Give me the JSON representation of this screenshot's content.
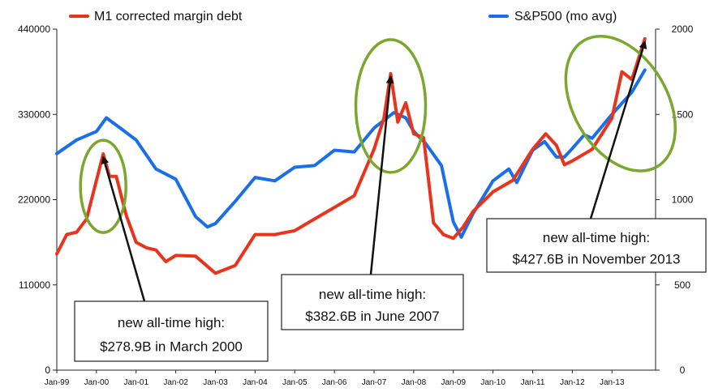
{
  "chart_data": {
    "type": "line",
    "title": "",
    "xlabel": "",
    "ylabel_left": "",
    "ylabel_right": "",
    "x_tick_labels": [
      "Jan-99",
      "Jan-00",
      "Jan-01",
      "Jan-02",
      "Jan-03",
      "Jan-04",
      "Jan-05",
      "Jan-06",
      "Jan-07",
      "Jan-08",
      "Jan-09",
      "Jan-10",
      "Jan-11",
      "Jan-12",
      "Jan-13"
    ],
    "x_range": [
      1999.0,
      2014.1
    ],
    "y_left": {
      "range": [
        0,
        440000
      ],
      "ticks": [
        "0",
        "110000",
        "220000",
        "330000",
        "440000"
      ]
    },
    "y_right": {
      "range": [
        0,
        2000
      ],
      "ticks": [
        "0",
        "500",
        "1000",
        "1500",
        "2000"
      ]
    },
    "legend": {
      "placement": "top"
    },
    "series": [
      {
        "name": "M1 corrected margin debt",
        "axis": "left",
        "color": "#e8341c",
        "x": [
          1999.0,
          1999.25,
          1999.5,
          1999.75,
          2000.0,
          2000.17,
          2000.33,
          2000.5,
          2000.75,
          2001.0,
          2001.25,
          2001.5,
          2001.75,
          2002.0,
          2002.5,
          2003.0,
          2003.5,
          2004.0,
          2004.5,
          2005.0,
          2005.5,
          2006.0,
          2006.5,
          2006.75,
          2007.0,
          2007.25,
          2007.42,
          2007.6,
          2007.8,
          2008.0,
          2008.25,
          2008.5,
          2008.75,
          2009.0,
          2009.25,
          2009.5,
          2010.0,
          2010.5,
          2011.0,
          2011.33,
          2011.6,
          2011.8,
          2012.0,
          2012.5,
          2013.0,
          2013.25,
          2013.5,
          2013.83
        ],
        "values": [
          150000,
          175000,
          178000,
          195000,
          245000,
          278900,
          250000,
          250000,
          200000,
          165000,
          158000,
          155000,
          140000,
          148000,
          147000,
          125000,
          135000,
          175000,
          175000,
          180000,
          195000,
          210000,
          225000,
          255000,
          285000,
          325000,
          382600,
          320000,
          345000,
          305000,
          300000,
          190000,
          175000,
          170000,
          185000,
          205000,
          230000,
          245000,
          285000,
          305000,
          290000,
          265000,
          270000,
          285000,
          325000,
          385000,
          375000,
          427600
        ]
      },
      {
        "name": "S&P500 (mo avg)",
        "axis": "right",
        "color": "#1a6fe8",
        "x": [
          1999.0,
          1999.5,
          2000.0,
          2000.25,
          2000.6,
          2001.0,
          2001.5,
          2002.0,
          2002.5,
          2002.8,
          2003.0,
          2003.5,
          2004.0,
          2004.5,
          2005.0,
          2005.5,
          2006.0,
          2006.5,
          2007.0,
          2007.5,
          2007.8,
          2008.0,
          2008.3,
          2008.7,
          2009.0,
          2009.2,
          2009.5,
          2010.0,
          2010.4,
          2010.6,
          2011.0,
          2011.3,
          2011.6,
          2011.8,
          2012.0,
          2012.3,
          2012.5,
          2013.0,
          2013.5,
          2013.83
        ],
        "values": [
          1270,
          1350,
          1400,
          1480,
          1420,
          1350,
          1180,
          1120,
          900,
          840,
          860,
          990,
          1130,
          1110,
          1190,
          1200,
          1290,
          1280,
          1420,
          1510,
          1480,
          1400,
          1330,
          1200,
          870,
          780,
          920,
          1110,
          1180,
          1100,
          1290,
          1340,
          1250,
          1250,
          1300,
          1380,
          1360,
          1500,
          1630,
          1760
        ]
      }
    ],
    "annotations": [
      {
        "line1": "new all-time high:",
        "line2": "$278.9B in March 2000",
        "x": 2000.17,
        "value": 278900
      },
      {
        "line1": "new all-time high:",
        "line2": "$382.6B in June 2007",
        "x": 2007.42,
        "value": 382600
      },
      {
        "line1": "new all-time high:",
        "line2": "$427.6B in November 2013",
        "x": 2013.83,
        "value": 427600
      }
    ],
    "highlight_color": "#7ba72e"
  }
}
